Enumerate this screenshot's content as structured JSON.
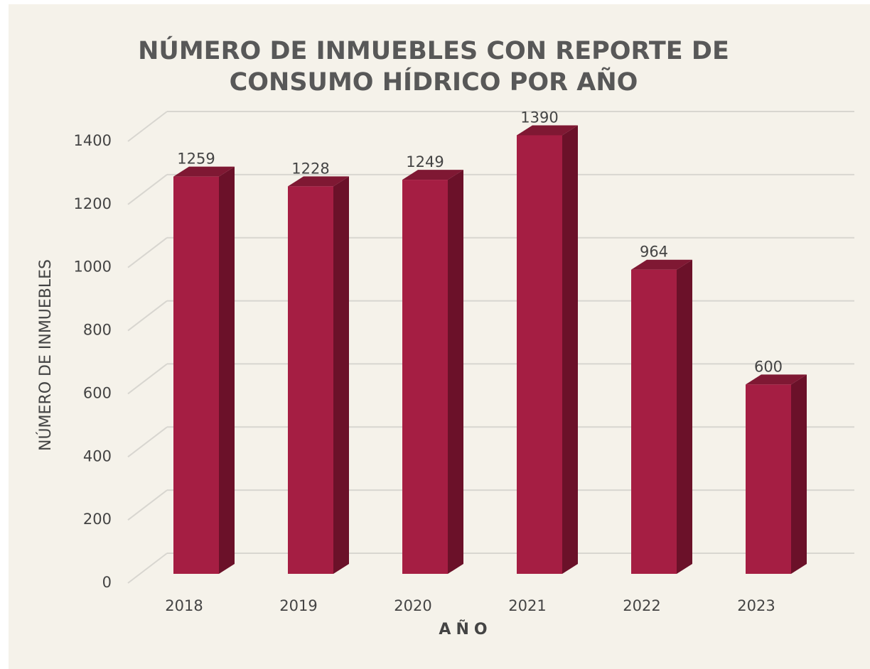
{
  "chart_data": {
    "type": "bar",
    "title": [
      "NÚMERO DE INMUEBLES CON REPORTE DE",
      "CONSUMO HÍDRICO POR AÑO"
    ],
    "x_label": "AÑO",
    "y_label": "NÚMERO DE INMUEBLES",
    "categories": [
      "2018",
      "2019",
      "2020",
      "2021",
      "2022",
      "2023"
    ],
    "values": [
      1259,
      1228,
      1249,
      1390,
      964,
      600
    ],
    "color": "#a51e43",
    "ylim": [
      0,
      1400
    ],
    "yticks": [
      0,
      200,
      400,
      600,
      800,
      1000,
      1200,
      1400
    ],
    "grid": true
  }
}
